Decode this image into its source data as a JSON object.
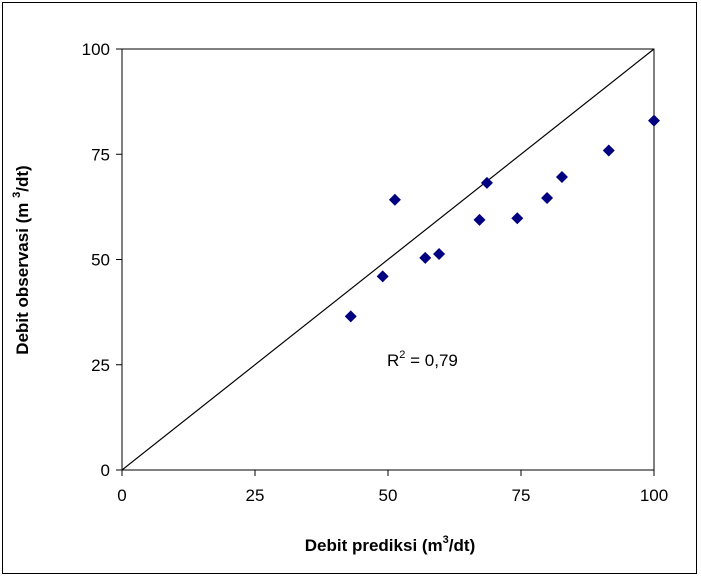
{
  "chart_data": {
    "type": "scatter",
    "xlabel": {
      "main": "Debit prediksi (m",
      "sup": "3",
      "end": "/dt)"
    },
    "ylabel": {
      "main": "Debit observasi (m ",
      "sup": "3",
      "end": "/dt)"
    },
    "xlim": [
      0,
      100
    ],
    "ylim": [
      0,
      100
    ],
    "x_ticks": [
      "0",
      "25",
      "50",
      "75",
      "100"
    ],
    "y_ticks": [
      "0",
      "25",
      "50",
      "75",
      "100"
    ],
    "grid": false,
    "legend": "none",
    "reference_line": {
      "from": [
        0,
        0
      ],
      "to": [
        100,
        100
      ]
    },
    "annotation": {
      "main": "R",
      "sup": "2",
      "end": " = 0,79"
    },
    "marker_color": "#000080",
    "points": [
      {
        "x": 43,
        "y": 36.5
      },
      {
        "x": 49,
        "y": 46
      },
      {
        "x": 51.3,
        "y": 64.2
      },
      {
        "x": 57,
        "y": 50.4
      },
      {
        "x": 59.6,
        "y": 51.3
      },
      {
        "x": 67.2,
        "y": 59.4
      },
      {
        "x": 68.6,
        "y": 68.2
      },
      {
        "x": 74.3,
        "y": 59.8
      },
      {
        "x": 79.9,
        "y": 64.6
      },
      {
        "x": 82.7,
        "y": 69.6
      },
      {
        "x": 91.5,
        "y": 75.9
      },
      {
        "x": 100,
        "y": 83
      }
    ]
  }
}
